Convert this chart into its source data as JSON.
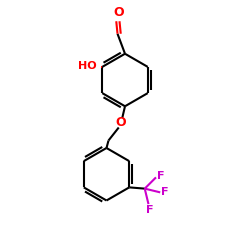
{
  "bond_color": "#000000",
  "ho_color": "#ff0000",
  "o_color": "#ff0000",
  "f_color": "#cc00cc",
  "bond_width": 1.5,
  "background": "#ffffff",
  "figsize": [
    2.5,
    2.5
  ],
  "dpi": 100,
  "cho_label": "O",
  "ho_label": "HO",
  "o_label": "O",
  "f_label": "F",
  "xlim": [
    0,
    10
  ],
  "ylim": [
    0,
    10
  ]
}
